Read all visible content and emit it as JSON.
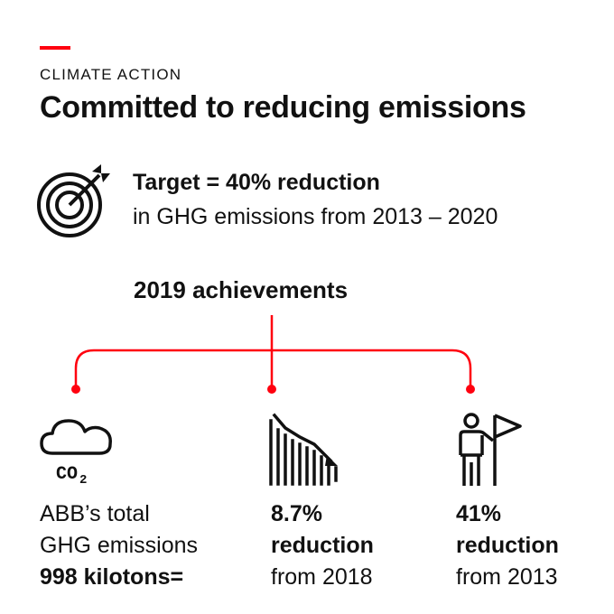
{
  "header": {
    "eyebrow": "CLIMATE ACTION",
    "title": "Committed to reducing emissions"
  },
  "target": {
    "icon": "target-icon",
    "line1": "Target = 40% reduction",
    "line2": "in GHG emissions from 2013 – 2020"
  },
  "achievements_heading": "2019 achievements",
  "columns": [
    {
      "icon": "co2-cloud-icon",
      "icon_text": "CO",
      "icon_subscript": "2",
      "line1": "ABB’s total",
      "line2": "GHG emissions",
      "line3": "998 kilotons="
    },
    {
      "icon": "declining-chart-icon",
      "line1": "8.7%",
      "line2": "reduction",
      "line3": "from 2018"
    },
    {
      "icon": "person-flag-icon",
      "line1": "41%",
      "line2": "reduction",
      "line3": "from 2013"
    }
  ],
  "colors": {
    "accent": "#ff000f",
    "text": "#111111",
    "background": "#ffffff"
  }
}
